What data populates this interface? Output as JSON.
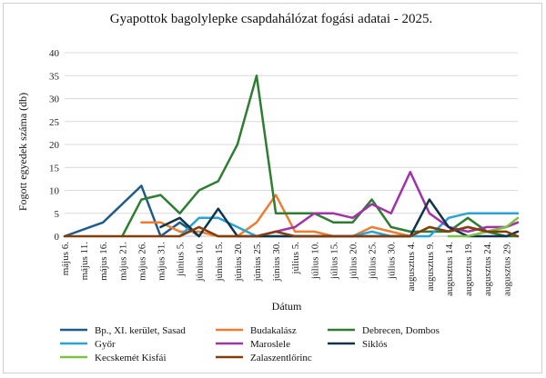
{
  "chart_data": {
    "type": "line",
    "title": "Gyapottok bagolylepke csapdahálózat fogási adatai - 2025.",
    "xlabel": "Dátum",
    "ylabel": "Fogott egyedek száma (db)",
    "ylim": [
      0,
      40
    ],
    "yticks": [
      0,
      5,
      10,
      15,
      20,
      25,
      30,
      35,
      40
    ],
    "grid": true,
    "legend_position": "bottom",
    "categories": [
      "május 6.",
      "május 11.",
      "május 16.",
      "május 21.",
      "május 26.",
      "május 31.",
      "június 5.",
      "június 10.",
      "június 15.",
      "június 20.",
      "június 25.",
      "június 30.",
      "július 5.",
      "július 10.",
      "július 15.",
      "július 20.",
      "július 25.",
      "július 30.",
      "augusztus 4.",
      "augusztus 9.",
      "augusztus 14.",
      "augusztus 19.",
      "augusztus 24.",
      "augusztus 29."
    ],
    "x": [
      0,
      5,
      10,
      15,
      20,
      25,
      30,
      35,
      40,
      45,
      50,
      55,
      60,
      65,
      70,
      75,
      80,
      85,
      90,
      95,
      100,
      105,
      110,
      115,
      118
    ],
    "series": [
      {
        "name": "Bp., XI. kerület, Sasad",
        "color": "#1f5c8b",
        "x": [
          0,
          10,
          20,
          25,
          30,
          35
        ],
        "values": [
          0,
          3,
          11,
          0,
          3,
          0
        ]
      },
      {
        "name": "Budakalász",
        "color": "#ed7d31",
        "x": [
          20,
          25,
          30,
          35,
          40,
          45,
          50,
          55,
          60,
          65,
          70,
          75,
          80,
          85,
          90,
          95,
          100,
          105,
          110,
          115,
          118
        ],
        "values": [
          3,
          3,
          1,
          1,
          0,
          0,
          3,
          9,
          1,
          1,
          0,
          0,
          2,
          1,
          0,
          2,
          1,
          2,
          1,
          2,
          3
        ]
      },
      {
        "name": "Debrecen, Dombos",
        "color": "#2e7d32",
        "x": [
          15,
          20,
          25,
          30,
          35,
          40,
          45,
          50,
          55,
          60,
          65,
          70,
          75,
          80,
          85,
          90,
          95,
          100,
          105,
          110,
          115,
          118
        ],
        "values": [
          0,
          8,
          9,
          5,
          10,
          12,
          20,
          35,
          5,
          5,
          5,
          3,
          3,
          8,
          2,
          1,
          1,
          1,
          4,
          1,
          0,
          0
        ]
      },
      {
        "name": "Győr",
        "color": "#29a3d8",
        "x": [
          30,
          35,
          40,
          45,
          50,
          55,
          60,
          65,
          70,
          75,
          80,
          85,
          90,
          95,
          100,
          105,
          110,
          115,
          118
        ],
        "values": [
          0,
          4,
          4,
          2,
          0,
          0,
          0,
          0,
          0,
          0,
          1,
          0,
          0,
          0,
          4,
          5,
          5,
          5,
          5
        ]
      },
      {
        "name": "Maroslele",
        "color": "#a033a8",
        "x": [
          50,
          55,
          60,
          65,
          70,
          75,
          80,
          85,
          90,
          95,
          100,
          105,
          110,
          115,
          118
        ],
        "values": [
          0,
          1,
          2,
          5,
          5,
          4,
          7,
          5,
          14,
          5,
          2,
          1,
          2,
          2,
          3
        ]
      },
      {
        "name": "Siklós",
        "color": "#10344a",
        "x": [
          25,
          30,
          35,
          40,
          45,
          50,
          55,
          60,
          65,
          70,
          75,
          80,
          85,
          90,
          95,
          100,
          105,
          110,
          115,
          118
        ],
        "values": [
          2,
          4,
          0,
          6,
          0,
          0,
          0,
          0,
          0,
          0,
          0,
          0,
          0,
          0,
          8,
          2,
          0,
          0,
          0,
          1
        ]
      },
      {
        "name": "Kecskemét Kisfái",
        "color": "#7cc242",
        "x": [
          100,
          105,
          110,
          115,
          118
        ],
        "values": [
          0,
          0,
          1,
          2,
          4
        ]
      },
      {
        "name": "Zalaszentlőrinc",
        "color": "#843c0c",
        "x": [
          0,
          5,
          10,
          15,
          20,
          25,
          30,
          35,
          40,
          45,
          50,
          55,
          60,
          65,
          70,
          75,
          80,
          85,
          90,
          95,
          100,
          105,
          110,
          115,
          118
        ],
        "values": [
          0,
          0,
          0,
          0,
          0,
          0,
          0,
          2,
          0,
          0,
          0,
          1,
          0,
          0,
          0,
          0,
          0,
          0,
          0,
          2,
          1,
          2,
          1,
          1,
          0
        ]
      }
    ]
  }
}
